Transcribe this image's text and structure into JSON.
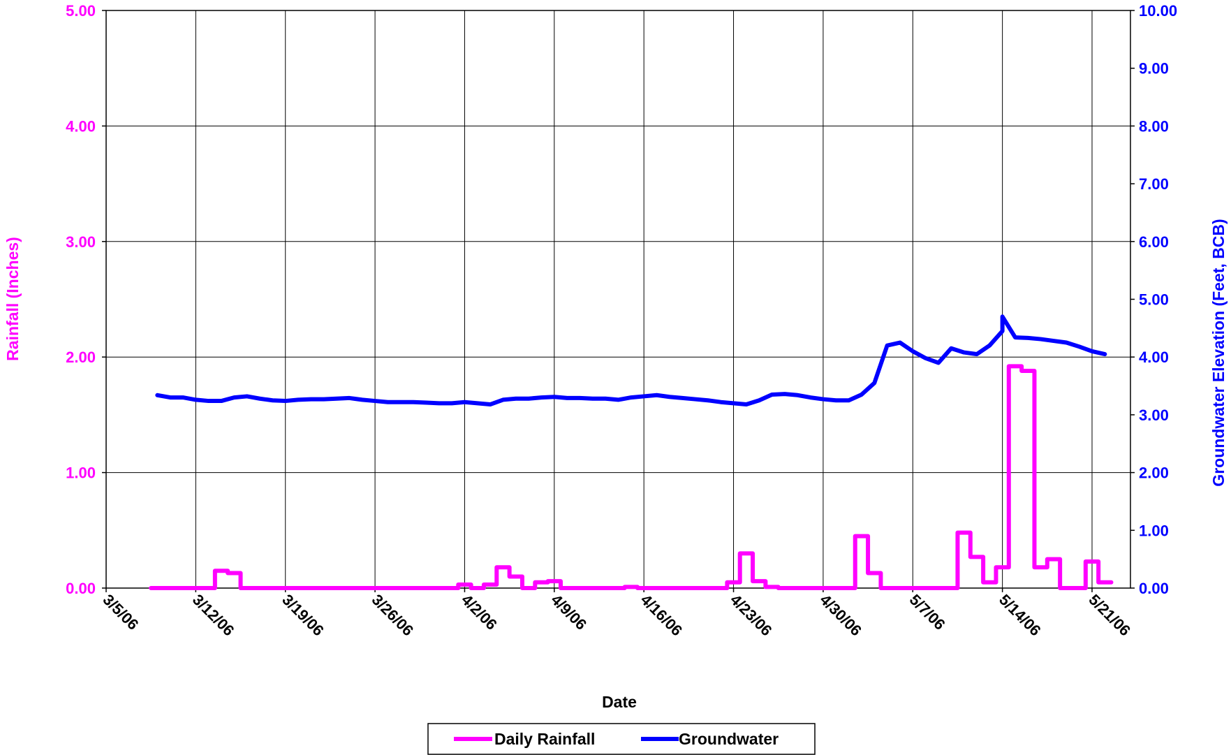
{
  "chart_data": {
    "type": "line",
    "xlabel": "Date",
    "ylabel_left": "Rainfall (Inches)",
    "ylabel_right": "Groundwater Elevation (Feet, BCB)",
    "xlim": [
      "3/5/06",
      "5/24/06"
    ],
    "ylim_left": [
      0,
      5
    ],
    "ylim_right": [
      0,
      10
    ],
    "grid": true,
    "legend_position": "bottom-center",
    "colors": {
      "left_axis": "#ff00ff",
      "right_axis": "#0000ff"
    },
    "x_tick_labels": [
      "3/5/06",
      "3/12/06",
      "3/19/06",
      "3/26/06",
      "4/2/06",
      "4/9/06",
      "4/16/06",
      "4/23/06",
      "4/30/06",
      "5/7/06",
      "5/14/06",
      "5/21/06"
    ],
    "y_left_tick_labels": [
      "0.00",
      "1.00",
      "2.00",
      "3.00",
      "4.00",
      "5.00"
    ],
    "y_right_tick_labels": [
      "0.00",
      "1.00",
      "2.00",
      "3.00",
      "4.00",
      "5.00",
      "6.00",
      "7.00",
      "8.00",
      "9.00",
      "10.00"
    ],
    "series": [
      {
        "name": "Daily Rainfall",
        "color": "#ff00ff",
        "axis": "left",
        "step": true,
        "x": [
          "3/9/06",
          "3/10/06",
          "3/11/06",
          "3/12/06",
          "3/13/06",
          "3/14/06",
          "3/15/06",
          "3/16/06",
          "3/17/06",
          "3/18/06",
          "3/19/06",
          "3/20/06",
          "3/21/06",
          "3/22/06",
          "3/23/06",
          "3/24/06",
          "3/25/06",
          "3/26/06",
          "3/27/06",
          "3/28/06",
          "3/29/06",
          "3/30/06",
          "3/31/06",
          "4/1/06",
          "4/2/06",
          "4/3/06",
          "4/4/06",
          "4/5/06",
          "4/6/06",
          "4/7/06",
          "4/8/06",
          "4/9/06",
          "4/10/06",
          "4/11/06",
          "4/12/06",
          "4/13/06",
          "4/14/06",
          "4/15/06",
          "4/16/06",
          "4/17/06",
          "4/18/06",
          "4/19/06",
          "4/20/06",
          "4/21/06",
          "4/22/06",
          "4/23/06",
          "4/24/06",
          "4/25/06",
          "4/26/06",
          "4/27/06",
          "4/28/06",
          "4/29/06",
          "4/30/06",
          "5/1/06",
          "5/2/06",
          "5/3/06",
          "5/4/06",
          "5/5/06",
          "5/6/06",
          "5/7/06",
          "5/8/06",
          "5/9/06",
          "5/10/06",
          "5/11/06",
          "5/12/06",
          "5/13/06",
          "5/14/06",
          "5/15/06",
          "5/16/06",
          "5/17/06",
          "5/18/06",
          "5/19/06",
          "5/20/06",
          "5/21/06",
          "5/22/06"
        ],
        "values": [
          0.0,
          0.0,
          0.0,
          0.0,
          0.0,
          0.15,
          0.13,
          0.0,
          0.0,
          0.0,
          0.0,
          0.0,
          0.0,
          0.0,
          0.0,
          0.0,
          0.0,
          0.0,
          0.0,
          0.0,
          0.0,
          0.0,
          0.0,
          0.0,
          0.03,
          0.0,
          0.03,
          0.18,
          0.1,
          0.0,
          0.05,
          0.06,
          0.0,
          0.0,
          0.0,
          0.0,
          0.0,
          0.01,
          0.0,
          0.0,
          0.0,
          0.0,
          0.0,
          0.0,
          0.0,
          0.05,
          0.3,
          0.06,
          0.01,
          0.0,
          0.0,
          0.0,
          0.0,
          0.0,
          0.0,
          0.45,
          0.13,
          0.0,
          0.0,
          0.0,
          0.0,
          0.0,
          0.0,
          0.48,
          0.27,
          0.05,
          0.18,
          1.92,
          1.88,
          0.18,
          0.25,
          0.0,
          0.0,
          0.23,
          0.05
        ]
      },
      {
        "name": "Groundwater",
        "color": "#0000ff",
        "axis": "right",
        "step": false,
        "x": [
          "3/9/06",
          "3/10/06",
          "3/11/06",
          "3/12/06",
          "3/13/06",
          "3/14/06",
          "3/15/06",
          "3/16/06",
          "3/17/06",
          "3/18/06",
          "3/19/06",
          "3/20/06",
          "3/21/06",
          "3/22/06",
          "3/23/06",
          "3/24/06",
          "3/25/06",
          "3/26/06",
          "3/27/06",
          "3/28/06",
          "3/29/06",
          "3/30/06",
          "3/31/06",
          "4/1/06",
          "4/2/06",
          "4/3/06",
          "4/4/06",
          "4/5/06",
          "4/6/06",
          "4/7/06",
          "4/8/06",
          "4/9/06",
          "4/10/06",
          "4/11/06",
          "4/12/06",
          "4/13/06",
          "4/14/06",
          "4/15/06",
          "4/16/06",
          "4/17/06",
          "4/18/06",
          "4/19/06",
          "4/20/06",
          "4/21/06",
          "4/22/06",
          "4/23/06",
          "4/24/06",
          "4/25/06",
          "4/26/06",
          "4/27/06",
          "4/28/06",
          "4/29/06",
          "4/30/06",
          "5/1/06",
          "5/2/06",
          "5/3/06",
          "5/4/06",
          "5/5/06",
          "5/6/06",
          "5/7/06",
          "5/8/06",
          "5/9/06",
          "5/10/06",
          "5/11/06",
          "5/12/06",
          "5/13/06",
          "5/14/06",
          "5/14/06",
          "5/15/06",
          "5/16/06",
          "5/17/06",
          "5/18/06",
          "5/19/06",
          "5/20/06",
          "5/21/06",
          "5/22/06"
        ],
        "values": [
          3.34,
          3.3,
          3.3,
          3.26,
          3.24,
          3.24,
          3.3,
          3.32,
          3.28,
          3.25,
          3.24,
          3.26,
          3.27,
          3.27,
          3.28,
          3.29,
          3.26,
          3.24,
          3.22,
          3.22,
          3.22,
          3.21,
          3.2,
          3.2,
          3.22,
          3.2,
          3.18,
          3.26,
          3.28,
          3.28,
          3.3,
          3.31,
          3.29,
          3.29,
          3.28,
          3.28,
          3.26,
          3.3,
          3.32,
          3.34,
          3.31,
          3.29,
          3.27,
          3.25,
          3.22,
          3.2,
          3.18,
          3.25,
          3.35,
          3.36,
          3.34,
          3.3,
          3.27,
          3.25,
          3.25,
          3.35,
          3.55,
          4.2,
          4.25,
          4.1,
          3.98,
          3.9,
          4.15,
          4.08,
          4.05,
          4.2,
          4.45,
          4.7,
          4.34,
          4.33,
          4.31,
          4.28,
          4.25,
          4.18,
          4.1,
          4.05
        ]
      }
    ]
  }
}
